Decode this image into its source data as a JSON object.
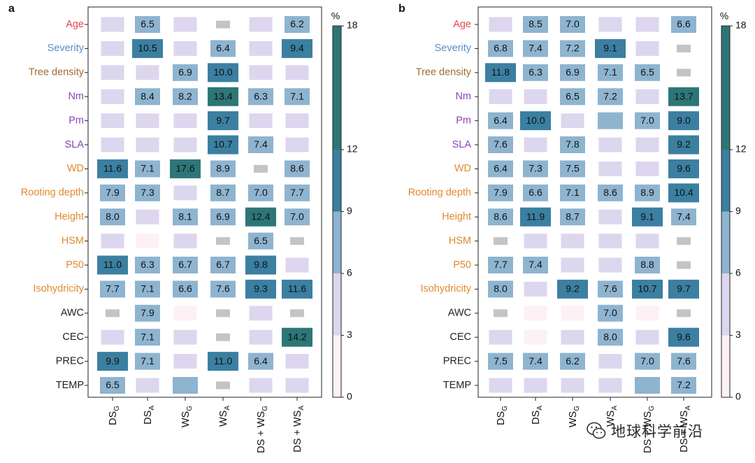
{
  "chart_data": [
    {
      "panel_label": "a",
      "type": "heatmap",
      "rows": [
        "Age",
        "Severity",
        "Tree density",
        "Nm",
        "Pm",
        "SLA",
        "WD",
        "Rooting depth",
        "Height",
        "HSM",
        "P50",
        "Isohydricity",
        "AWC",
        "CEC",
        "PREC",
        "TEMP"
      ],
      "row_label_colors": [
        "#e8474f",
        "#5b8ec9",
        "#a06a38",
        "#8a45b5",
        "#8a45b5",
        "#8a45b5",
        "#e0892f",
        "#e0892f",
        "#e0892f",
        "#e0892f",
        "#e0892f",
        "#e0892f",
        "#222222",
        "#222222",
        "#222222",
        "#222222"
      ],
      "columns": [
        {
          "base": "DS",
          "sub": "G"
        },
        {
          "base": "DS",
          "sub": "A"
        },
        {
          "base": "WS",
          "sub": "G"
        },
        {
          "base": "WS",
          "sub": "A"
        },
        {
          "base": "DS + WS",
          "sub": "G"
        },
        {
          "base": "DS + WS",
          "sub": "A"
        }
      ],
      "values": [
        [
          "lav",
          "6.5",
          "lav",
          "gray",
          "lav",
          "6.2"
        ],
        [
          "lav",
          "10.5",
          "lav",
          "6.4",
          "lav",
          "9.4"
        ],
        [
          "lav",
          "lav",
          "6.9",
          "10.0",
          "lav",
          "lav"
        ],
        [
          "lav",
          "8.4",
          "8.2",
          "13.4",
          "6.3",
          "7.1"
        ],
        [
          "lav",
          "lav",
          "lav",
          "9.7",
          "lav",
          "lav"
        ],
        [
          "lav",
          "lav",
          "lav",
          "10.7",
          "7.4",
          "lav"
        ],
        [
          "11.6",
          "7.1",
          "17.6",
          "8.9",
          "gray",
          "8.6"
        ],
        [
          "7.9",
          "7.3",
          "lav",
          "8.7",
          "7.0",
          "7.7"
        ],
        [
          "8.0",
          "lav",
          "8.1",
          "6.9",
          "12.4",
          "7.0"
        ],
        [
          "lav",
          "pink",
          "lav",
          "gray",
          "6.5",
          "gray"
        ],
        [
          "11.0",
          "6.3",
          "6.7",
          "6.7",
          "9.8",
          "lav"
        ],
        [
          "7.7",
          "7.1",
          "6.6",
          "7.6",
          "9.3",
          "11.6"
        ],
        [
          "gray",
          "7.9",
          "pink",
          "gray",
          "lav",
          "gray"
        ],
        [
          "lav",
          "7.1",
          "lav",
          "gray",
          "lav",
          "14.2"
        ],
        [
          "9.9",
          "7.1",
          "lav",
          "11.0",
          "6.4",
          "lav"
        ],
        [
          "6.5",
          "lav",
          "mid",
          "gray",
          "lav",
          "lav"
        ]
      ],
      "colorbar": {
        "unit": "%",
        "ticks": [
          "0",
          "3",
          "6",
          "9",
          "12",
          "18"
        ],
        "min": 0,
        "max": 18
      }
    },
    {
      "panel_label": "b",
      "type": "heatmap",
      "rows": [
        "Age",
        "Severity",
        "Tree density",
        "Nm",
        "Pm",
        "SLA",
        "WD",
        "Rooting depth",
        "Height",
        "HSM",
        "P50",
        "Isohydricity",
        "AWC",
        "CEC",
        "PREC",
        "TEMP"
      ],
      "row_label_colors": [
        "#e8474f",
        "#5b8ec9",
        "#a06a38",
        "#8a45b5",
        "#8a45b5",
        "#8a45b5",
        "#e0892f",
        "#e0892f",
        "#e0892f",
        "#e0892f",
        "#e0892f",
        "#e0892f",
        "#222222",
        "#222222",
        "#222222",
        "#222222"
      ],
      "columns": [
        {
          "base": "DS",
          "sub": "G"
        },
        {
          "base": "DS",
          "sub": "A"
        },
        {
          "base": "WS",
          "sub": "G"
        },
        {
          "base": "WS",
          "sub": "A"
        },
        {
          "base": "DS + WS",
          "sub": "G"
        },
        {
          "base": "DS + WS",
          "sub": "A"
        }
      ],
      "values": [
        [
          "lav",
          "8.5",
          "7.0",
          "lav",
          "lav",
          "6.6"
        ],
        [
          "6.8",
          "7.4",
          "7.2",
          "9.1",
          "lav",
          "gray"
        ],
        [
          "11.8",
          "6.3",
          "6.9",
          "7.1",
          "6.5",
          "gray"
        ],
        [
          "lav",
          "lav",
          "6.5",
          "7.2",
          "lav",
          "13.7"
        ],
        [
          "6.4",
          "10.0",
          "lav",
          "mid",
          "7.0",
          "9.0"
        ],
        [
          "7.6",
          "lav",
          "7.8",
          "lav",
          "lav",
          "9.2"
        ],
        [
          "6.4",
          "7.3",
          "7.5",
          "lav",
          "lav",
          "9.6"
        ],
        [
          "7.9",
          "6.6",
          "7.1",
          "8.6",
          "8.9",
          "10.4"
        ],
        [
          "8.6",
          "11.9",
          "8.7",
          "lav",
          "9.1",
          "7.4"
        ],
        [
          "gray",
          "lav",
          "lav",
          "lav",
          "lav",
          "gray"
        ],
        [
          "7.7",
          "7.4",
          "lav",
          "lav",
          "8.8",
          "gray"
        ],
        [
          "8.0",
          "lav",
          "9.2",
          "7.6",
          "10.7",
          "9.7"
        ],
        [
          "gray",
          "pink",
          "pink",
          "7.0",
          "pink",
          "gray"
        ],
        [
          "lav",
          "pink",
          "lav",
          "8.0",
          "lav",
          "9.6"
        ],
        [
          "7.5",
          "7.4",
          "6.2",
          "lav",
          "7.0",
          "7.6"
        ],
        [
          "lav",
          "lav",
          "lav",
          "lav",
          "mid",
          "7.2"
        ]
      ],
      "colorbar": {
        "unit": "%",
        "ticks": [
          "0",
          "3",
          "6",
          "9",
          "12",
          "18"
        ],
        "min": 0,
        "max": 18
      }
    }
  ],
  "colors": {
    "pink": "#fdf1f4",
    "lav": "#dcd6ee",
    "mid": "#8eb4d0",
    "dark": "#3b7fa1",
    "teal": "#2d7677",
    "gray": "#c4c4c4"
  },
  "watermark": {
    "text": "地球科学前沿",
    "icon": "wechat-logo-icon"
  }
}
